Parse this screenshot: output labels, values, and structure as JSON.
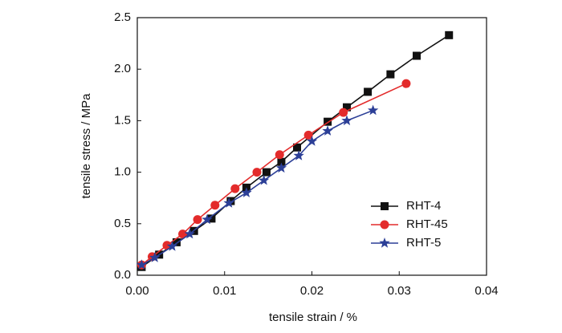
{
  "chart_data": {
    "type": "line",
    "xlabel": "tensile strain / %",
    "ylabel": "tensile stress / MPa",
    "xlim": [
      0,
      0.04
    ],
    "xticks": [
      {
        "value": 0,
        "label": "0.00"
      },
      0.01,
      0.02,
      0.03,
      0.04
    ],
    "ylim": [
      0,
      2.5
    ],
    "yticks": [
      {
        "value": 0,
        "label": "0.0"
      },
      0.5,
      {
        "value": 1,
        "label": "1.0"
      },
      1.5,
      {
        "value": 2,
        "label": "2.0"
      },
      2.5
    ],
    "legend": "lower right",
    "series": [
      {
        "name": "RHT-4",
        "color": "#111111",
        "marker": "square",
        "x": [
          0.0005,
          0.0025,
          0.0045,
          0.0065,
          0.0085,
          0.0107,
          0.0125,
          0.0148,
          0.0165,
          0.0183,
          0.0218,
          0.024,
          0.0264,
          0.029,
          0.032,
          0.0357
        ],
        "values": [
          0.08,
          0.2,
          0.32,
          0.43,
          0.55,
          0.72,
          0.85,
          1.0,
          1.1,
          1.24,
          1.49,
          1.63,
          1.78,
          1.95,
          2.13,
          2.33
        ]
      },
      {
        "name": "RHT-45",
        "color": "#e32b2b",
        "marker": "circle",
        "x": [
          0.0005,
          0.0017,
          0.0034,
          0.0052,
          0.0069,
          0.0089,
          0.0112,
          0.0137,
          0.0163,
          0.0196,
          0.0236,
          0.0308
        ],
        "values": [
          0.1,
          0.18,
          0.29,
          0.4,
          0.54,
          0.68,
          0.84,
          1.0,
          1.17,
          1.36,
          1.58,
          1.86
        ]
      },
      {
        "name": "RHT-5",
        "color": "#2c3f97",
        "marker": "star",
        "x": [
          0.0005,
          0.002,
          0.004,
          0.006,
          0.008,
          0.0105,
          0.0125,
          0.0145,
          0.0165,
          0.0185,
          0.02,
          0.0218,
          0.024,
          0.027
        ],
        "values": [
          0.1,
          0.17,
          0.28,
          0.4,
          0.54,
          0.7,
          0.8,
          0.92,
          1.04,
          1.16,
          1.3,
          1.4,
          1.5,
          1.6
        ]
      }
    ]
  }
}
